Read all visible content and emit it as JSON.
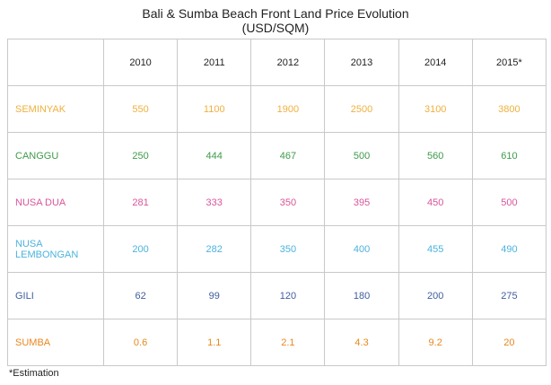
{
  "chart_data": {
    "type": "table",
    "title": "Bali & Sumba Beach Front Land Price Evolution",
    "subtitle": "(USD/SQM)",
    "columns": [
      "2010",
      "2011",
      "2012",
      "2013",
      "2014",
      "2015*"
    ],
    "series": [
      {
        "name": "SEMINYAK",
        "color": "#f0b03e",
        "bold": false,
        "values": [
          "550",
          "1100",
          "1900",
          "2500",
          "3100",
          "3800"
        ]
      },
      {
        "name": "CANGGU",
        "color": "#3f9a4a",
        "bold": false,
        "values": [
          "250",
          "444",
          "467",
          "500",
          "560",
          "610"
        ]
      },
      {
        "name": "NUSA DUA",
        "color": "#d9559a",
        "bold": false,
        "values": [
          "281",
          "333",
          "350",
          "395",
          "450",
          "500"
        ]
      },
      {
        "name": "NUSA LEMBONGAN",
        "color": "#4bb3dd",
        "bold": false,
        "values": [
          "200",
          "282",
          "350",
          "400",
          "455",
          "490"
        ]
      },
      {
        "name": "GILI",
        "color": "#3f5e9e",
        "bold": false,
        "values": [
          "62",
          "99",
          "120",
          "180",
          "200",
          "275"
        ]
      },
      {
        "name": "SUMBA",
        "color": "#e8871e",
        "bold": true,
        "values": [
          "0.6",
          "1.1",
          "2.1",
          "4.3",
          "9.2",
          "20"
        ]
      }
    ],
    "footnote": "*Estimation"
  }
}
